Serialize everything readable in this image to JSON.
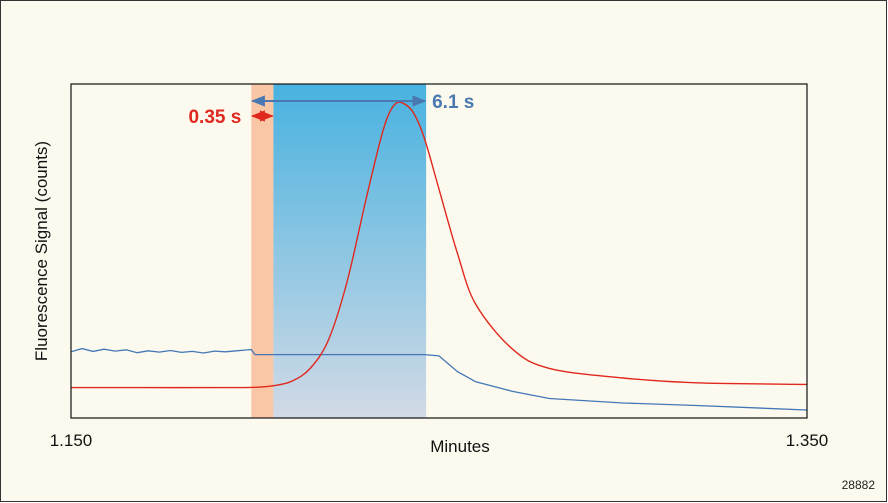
{
  "chart_data": {
    "type": "line",
    "xlabel": "Minutes",
    "ylabel": "Fluorescence Signal (counts)",
    "xlim": [
      1.15,
      1.35
    ],
    "ylim": [
      0,
      100
    ],
    "x_ticks": [
      "1.150",
      "1.350"
    ],
    "grid": false,
    "background_color": "#fcfaee",
    "series": [
      {
        "color": "#e0281e",
        "x": [
          1.15,
          1.17,
          1.19,
          1.2,
          1.205,
          1.21,
          1.215,
          1.22,
          1.225,
          1.23,
          1.234,
          1.236,
          1.238,
          1.24,
          1.243,
          1.246,
          1.25,
          1.255,
          1.26,
          1.27,
          1.28,
          1.3,
          1.32,
          1.35
        ],
        "y": [
          7.0,
          7.0,
          7.0,
          7.1,
          7.6,
          9.0,
          13.0,
          22.0,
          40.0,
          65.0,
          84.0,
          91.5,
          95.5,
          96.0,
          93.0,
          85.0,
          69.0,
          49.0,
          33.0,
          19.0,
          13.0,
          10.0,
          8.5,
          8.0
        ]
      },
      {
        "color": "#4477b8",
        "x": [
          1.15,
          1.153,
          1.156,
          1.159,
          1.162,
          1.165,
          1.168,
          1.171,
          1.174,
          1.177,
          1.18,
          1.183,
          1.186,
          1.189,
          1.192,
          1.195,
          1.199,
          1.2,
          1.245,
          1.246,
          1.25,
          1.255,
          1.26,
          1.27,
          1.28,
          1.3,
          1.32,
          1.35
        ],
        "y": [
          18.2,
          19.2,
          18.3,
          19.0,
          18.4,
          18.8,
          17.9,
          18.5,
          18.1,
          18.6,
          18.0,
          18.3,
          17.8,
          18.4,
          18.2,
          18.5,
          18.9,
          17.3,
          17.3,
          17.3,
          16.9,
          12.0,
          8.8,
          5.8,
          3.6,
          2.2,
          1.4,
          0.0
        ]
      }
    ],
    "shaded_regions": [
      {
        "x": [
          1.199,
          1.205
        ],
        "color": "#f9c6a6"
      },
      {
        "x": [
          1.205,
          1.2465
        ],
        "gradient": [
          "#48b2e0",
          "#d2dae6"
        ]
      }
    ],
    "annotations": [
      {
        "text": "0.35 s",
        "color": "#e0281e",
        "x": [
          1.199,
          1.205
        ]
      },
      {
        "text": "6.1 s",
        "color": "#4a78b0",
        "x": [
          1.199,
          1.2465
        ]
      }
    ],
    "figure_id": "28882"
  }
}
